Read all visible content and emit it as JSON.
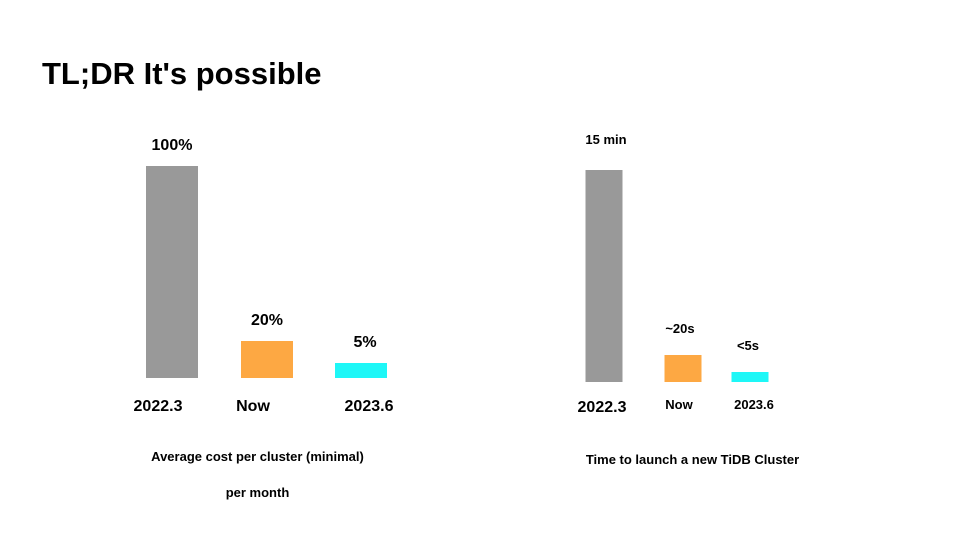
{
  "slide": {
    "title": "TL;DR It's possible"
  },
  "chart_data": [
    {
      "type": "bar",
      "categories": [
        "2022.3",
        "Now",
        "2023.6"
      ],
      "values": [
        100,
        20,
        5
      ],
      "data_labels": [
        "100%",
        "20%",
        "5%"
      ],
      "colors": [
        "#999999",
        "#FDA843",
        "#1EF7F7"
      ],
      "title": "",
      "caption_lines": [
        "Average cost per cluster (minimal)",
        "per month"
      ],
      "xlabel": "",
      "ylabel": "",
      "ylim": [
        0,
        100
      ],
      "grid": false
    },
    {
      "type": "bar",
      "categories": [
        "2022.3",
        "Now",
        "2023.6"
      ],
      "values": [
        900,
        20,
        5
      ],
      "data_labels": [
        "15 min",
        "~20s",
        "<5s"
      ],
      "colors": [
        "#999999",
        "#FDA843",
        "#1EF7F7"
      ],
      "title": "",
      "caption_lines": [
        "Time to launch a new TiDB Cluster"
      ],
      "xlabel": "",
      "ylabel": "",
      "ylim": [
        0,
        900
      ],
      "grid": false
    }
  ]
}
